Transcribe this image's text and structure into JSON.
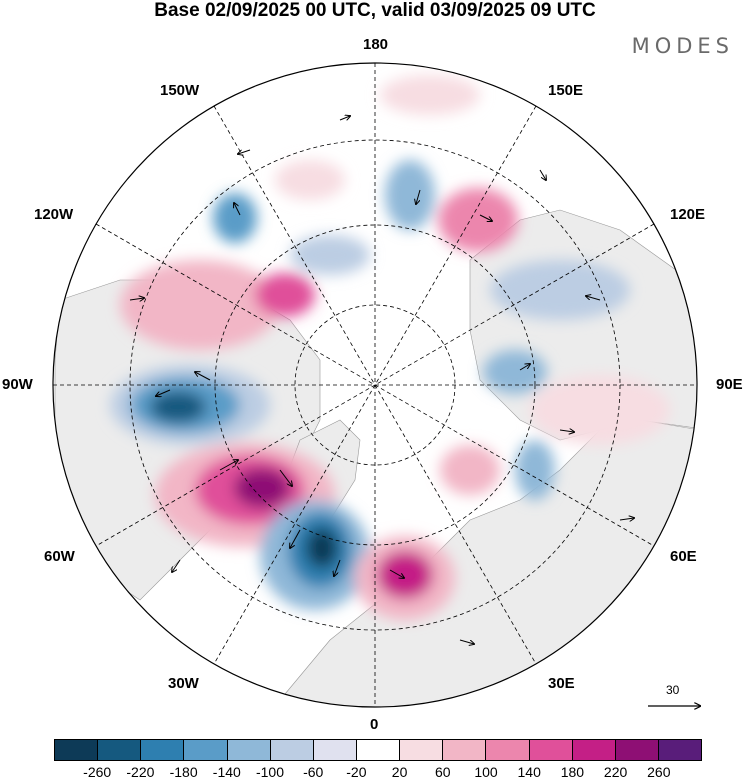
{
  "header": {
    "title": "Base 02/09/2025 00 UTC, valid 03/09/2025 09 UTC",
    "logo": "MODES"
  },
  "map": {
    "projection": "north-polar-stereographic",
    "longitude_labels": {
      "top": "180",
      "bottom": "0",
      "left": "90W",
      "right": "90E",
      "upper_left_1": "150W",
      "upper_left_2": "120W",
      "upper_right_1": "150E",
      "upper_right_2": "120E",
      "lower_left_1": "60W",
      "lower_left_2": "30W",
      "lower_right_1": "60E",
      "lower_right_2": "30E"
    },
    "reference_vector": {
      "value": "30"
    }
  },
  "colorbar": {
    "colors": [
      "#0d3a57",
      "#15597f",
      "#2e7fb0",
      "#5a9cc8",
      "#8fb8d8",
      "#bccde3",
      "#e0e1ef",
      "#ffffff",
      "#f7dde2",
      "#f2b6c6",
      "#ec86ad",
      "#e0509a",
      "#c41f86",
      "#8e0f74",
      "#591d7a"
    ],
    "tick_labels": [
      "-260",
      "-220",
      "-180",
      "-140",
      "-100",
      "-60",
      "-20",
      "20",
      "60",
      "100",
      "140",
      "180",
      "220",
      "260"
    ]
  }
}
